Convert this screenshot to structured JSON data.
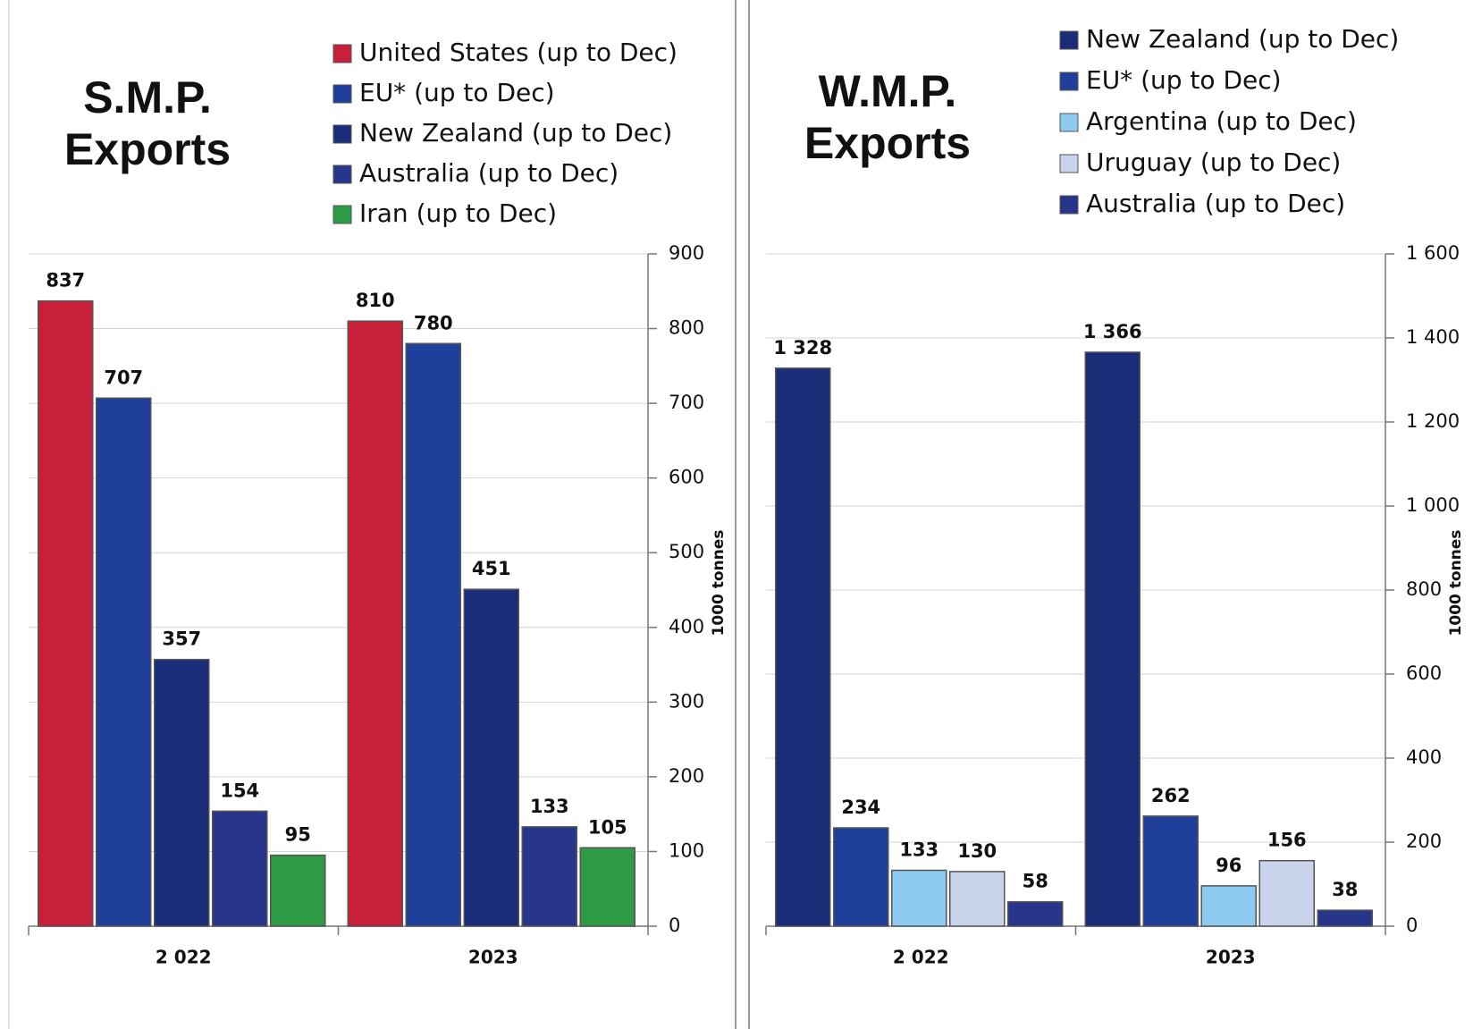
{
  "chart_data": [
    {
      "type": "bar",
      "title": "S.M.P. Exports",
      "y_label": "1000 tonnes",
      "categories": [
        "2 022",
        "2023"
      ],
      "series": [
        {
          "name": "United States (up to Dec)",
          "color": "#c8203a",
          "values": [
            837,
            810
          ]
        },
        {
          "name": "EU* (up to Dec)",
          "color": "#1f3f9a",
          "values": [
            707,
            780
          ]
        },
        {
          "name": "New Zealand (up to Dec)",
          "color": "#1b2c78",
          "values": [
            357,
            451
          ]
        },
        {
          "name": "Australia (up to Dec)",
          "color": "#27368a",
          "values": [
            154,
            133
          ]
        },
        {
          "name": "Iran (up to Dec)",
          "color": "#2f9a45",
          "values": [
            95,
            105
          ]
        }
      ],
      "ylim": [
        0,
        900
      ],
      "yticks": [
        0,
        100,
        200,
        300,
        400,
        500,
        600,
        700,
        800,
        900
      ],
      "grid": true
    },
    {
      "type": "bar",
      "title": "W.M.P. Exports",
      "y_label": "1000 tonnes",
      "categories": [
        "2 022",
        "2023"
      ],
      "series": [
        {
          "name": "New Zealand (up to Dec)",
          "color": "#1b2c78",
          "values": [
            1328,
            1366
          ],
          "value_labels": [
            "1 328",
            "1 366"
          ]
        },
        {
          "name": "EU* (up to Dec)",
          "color": "#1f3f9a",
          "values": [
            234,
            262
          ]
        },
        {
          "name": "Argentina (up to Dec)",
          "color": "#8ecbf0",
          "values": [
            133,
            96
          ]
        },
        {
          "name": "Uruguay (up to Dec)",
          "color": "#c9d3ec",
          "values": [
            130,
            156
          ]
        },
        {
          "name": "Australia (up to Dec)",
          "color": "#27368a",
          "values": [
            58,
            38
          ]
        }
      ],
      "ylim": [
        0,
        1600
      ],
      "yticks": [
        0,
        {
          "value": 200,
          "label": "200"
        },
        400,
        600,
        800,
        {
          "value": 1000,
          "label": "1 000"
        },
        {
          "value": 1200,
          "label": "1 200"
        },
        {
          "value": 1400,
          "label": "1 400"
        },
        {
          "value": 1600,
          "label": "1 600"
        }
      ],
      "grid": true
    }
  ]
}
